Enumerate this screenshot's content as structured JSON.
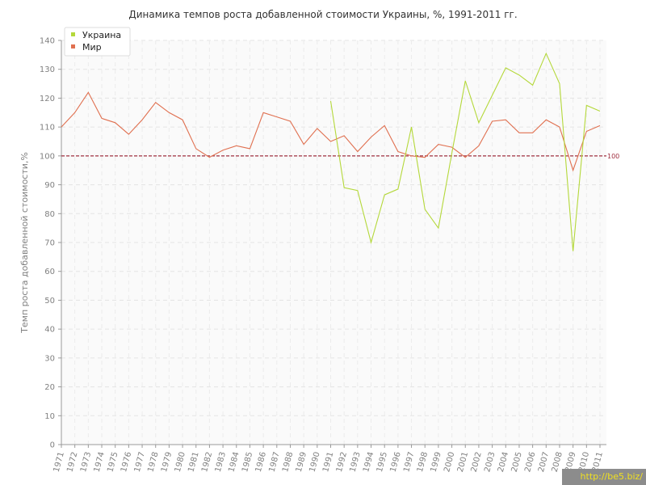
{
  "chart_data": {
    "type": "line",
    "title": "Динамика темпов роста добавленной стоимости Украины, %, 1991-2011 гг.",
    "xlabel": "",
    "ylabel": "Темп роста добавленной стоимости,%",
    "ylim": [
      0,
      140
    ],
    "yticks": [
      "0",
      "10",
      "20",
      "30",
      "40",
      "50",
      "60",
      "70",
      "80",
      "90",
      "100",
      "110",
      "120",
      "130",
      "140"
    ],
    "categories": [
      "1971",
      "1972",
      "1973",
      "1974",
      "1975",
      "1976",
      "1977",
      "1978",
      "1979",
      "1980",
      "1981",
      "1982",
      "1983",
      "1984",
      "1985",
      "1986",
      "1987",
      "1988",
      "1989",
      "1990",
      "1991",
      "1992",
      "1993",
      "1994",
      "1995",
      "1996",
      "1997",
      "1998",
      "1999",
      "2000",
      "2001",
      "2002",
      "2003",
      "2004",
      "2005",
      "2006",
      "2007",
      "2008",
      "2009",
      "2010",
      "2011"
    ],
    "grid": true,
    "legend_position": "top-left",
    "reference_line": {
      "value": 100,
      "label": "100",
      "color": "#a03040"
    },
    "series": [
      {
        "name": "Украина",
        "color": "#b4d83a",
        "values": [
          null,
          null,
          null,
          null,
          null,
          null,
          null,
          null,
          null,
          null,
          null,
          null,
          null,
          null,
          null,
          null,
          null,
          null,
          null,
          null,
          119,
          89,
          88,
          70,
          86.5,
          88.5,
          110,
          81.5,
          75,
          101,
          126,
          111.5,
          121,
          130.5,
          128,
          124.5,
          135.5,
          125,
          67,
          117.5,
          115.5
        ]
      },
      {
        "name": "Мир",
        "color": "#e07050",
        "values": [
          110,
          115,
          122,
          113,
          111.5,
          107.5,
          112.5,
          118.5,
          115,
          112.5,
          102.5,
          99.5,
          102,
          103.5,
          102.5,
          115,
          113.5,
          112,
          104,
          109.5,
          105,
          107,
          101.5,
          106.5,
          110.5,
          101.5,
          100,
          99.5,
          104,
          103,
          99.5,
          103.5,
          112,
          112.5,
          108,
          108,
          112.5,
          110,
          95,
          108.5,
          110.5
        ]
      }
    ]
  },
  "watermark": "http://be5.biz/"
}
